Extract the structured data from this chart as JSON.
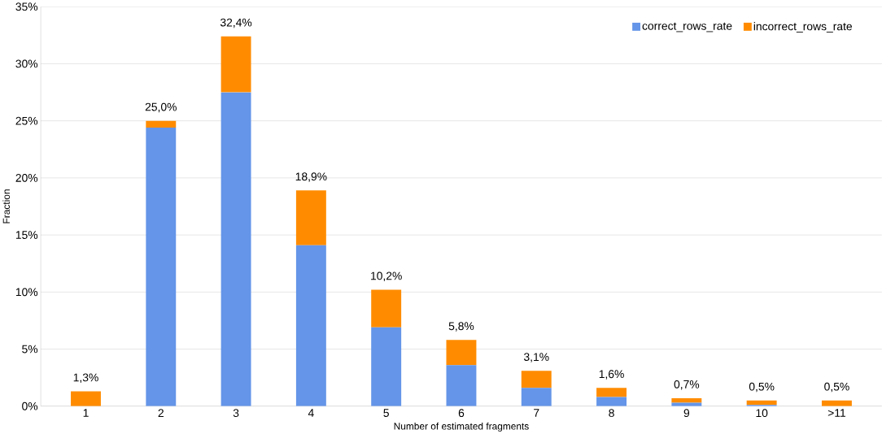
{
  "chart_data": {
    "type": "bar",
    "stacked": true,
    "xlabel": "Number of estimated fragments",
    "ylabel": "Fraction",
    "categories": [
      "1",
      "2",
      "3",
      "4",
      "5",
      "6",
      "7",
      "8",
      "9",
      "10",
      ">11"
    ],
    "series": [
      {
        "name": "correct_rows_rate",
        "color": "#6495e8",
        "values": [
          0,
          24.4,
          27.5,
          14.1,
          6.9,
          3.6,
          1.6,
          0.8,
          0.3,
          0.1,
          0
        ]
      },
      {
        "name": "incorrect_rows_rate",
        "color": "#ff8c00",
        "values": [
          1.3,
          0.6,
          4.9,
          4.8,
          3.3,
          2.2,
          1.5,
          0.8,
          0.4,
          0.4,
          0.5
        ]
      }
    ],
    "totals": [
      "1,3%",
      "25,0%",
      "32,4%",
      "18,9%",
      "10,2%",
      "5,8%",
      "3,1%",
      "1,6%",
      "0,7%",
      "0,5%",
      "0,5%"
    ],
    "ylim": [
      0,
      35
    ],
    "yticks": [
      {
        "value": 0,
        "label": "0%"
      },
      {
        "value": 5,
        "label": "5%"
      },
      {
        "value": 10,
        "label": "10%"
      },
      {
        "value": 15,
        "label": "15%"
      },
      {
        "value": 20,
        "label": "20%"
      },
      {
        "value": 25,
        "label": "25%"
      },
      {
        "value": 30,
        "label": "30%"
      },
      {
        "value": 35,
        "label": "35%"
      }
    ],
    "grid": "y",
    "legend": "top right"
  }
}
